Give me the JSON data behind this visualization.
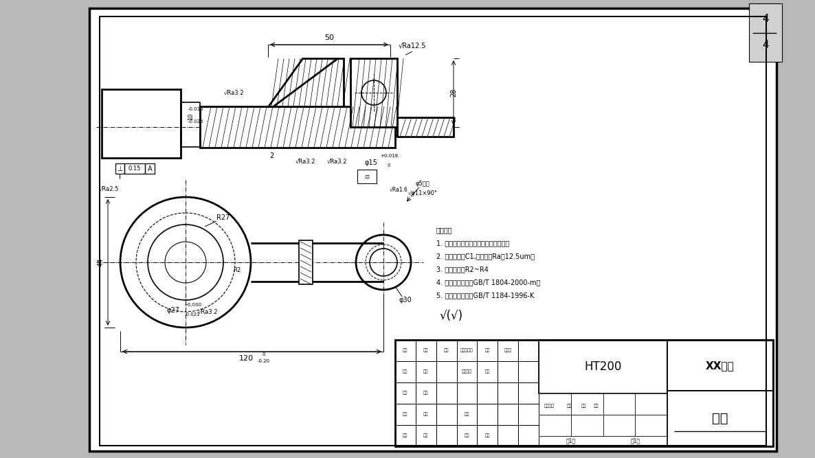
{
  "bg_color": "#b8b8b8",
  "paper_color": "#ffffff",
  "line_color": "#000000",
  "title_block": {
    "school": "XX学校",
    "material": "HT200",
    "part_name": "拨叉"
  },
  "tech_notes": {
    "lines": [
      "技术要求",
      "1. 铸件不得有气孔、裂纹及砂眼等缺陷",
      "2. 未注倒角为C1,表面粗度Ra为12.5um。",
      "3. 未注圆角为R2~R4",
      "4. 未注尺寸公差按GB/T 1804-2000-m。",
      "5. 未注几何公差按GB/T 1184-1996-K"
    ]
  }
}
